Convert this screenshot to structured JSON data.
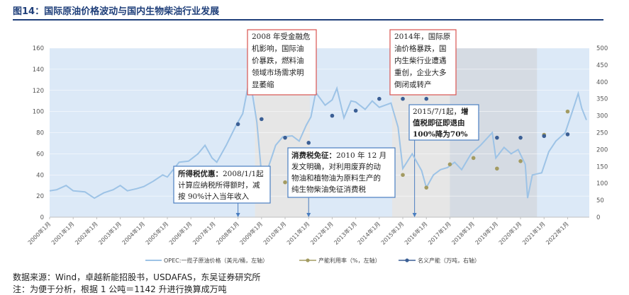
{
  "title": "图14：国际原油价格波动与国内生物柴油行业发展",
  "source": "数据来源：Wind，卓越新能招股书，USDAFAS，东吴证券研究所",
  "note": "注：为便于分析，根据 1 公吨＝1142 升进行换算成万吨",
  "colors": {
    "price_line": "#9dc3e6",
    "util_dot": "#a39b62",
    "cap_dot": "#3b5f95",
    "period_light": "#dce9f7",
    "period_gray": "#e6e6e6",
    "period_dark": "#d5dbe3",
    "box_red": "#d9534f",
    "box_blue": "#4a7ec0"
  },
  "chart_data": {
    "type": "line",
    "x_labels": [
      "2000年1月",
      "2001年1月",
      "2002年1月",
      "2003年1月",
      "2004年1月",
      "2005年1月",
      "2006年1月",
      "2007年1月",
      "2008年1月",
      "2009年1月",
      "2010年1月",
      "2011年1月",
      "2012年1月",
      "2013年1月",
      "2014年1月",
      "2015年1月",
      "2016年1月",
      "2017年1月",
      "2018年1月",
      "2019年1月",
      "2020年1月",
      "2021年1月",
      "2022年1月"
    ],
    "y_left": {
      "min": 0,
      "max": 160,
      "ticks": [
        0,
        20,
        40,
        60,
        80,
        100,
        120,
        140,
        160
      ]
    },
    "y_right": {
      "min": 0,
      "max": 500,
      "ticks": [
        0,
        50,
        100,
        150,
        200,
        250,
        300,
        350,
        400,
        450,
        500
      ]
    },
    "series": [
      {
        "name": "OPEC:一揽子原油价格（美元/桶，左轴）",
        "axis": "left",
        "kind": "line",
        "points": [
          [
            2000.0,
            25
          ],
          [
            2000.3,
            26
          ],
          [
            2000.7,
            30
          ],
          [
            2001.0,
            25
          ],
          [
            2001.5,
            24
          ],
          [
            2001.9,
            18
          ],
          [
            2002.3,
            23
          ],
          [
            2002.7,
            26
          ],
          [
            2003.0,
            30
          ],
          [
            2003.3,
            25
          ],
          [
            2003.7,
            27
          ],
          [
            2004.0,
            29
          ],
          [
            2004.4,
            34
          ],
          [
            2004.8,
            40
          ],
          [
            2005.0,
            38
          ],
          [
            2005.5,
            52
          ],
          [
            2005.9,
            53
          ],
          [
            2006.3,
            60
          ],
          [
            2006.6,
            68
          ],
          [
            2006.9,
            56
          ],
          [
            2007.1,
            52
          ],
          [
            2007.5,
            68
          ],
          [
            2007.9,
            86
          ],
          [
            2008.2,
            98
          ],
          [
            2008.5,
            132
          ],
          [
            2008.8,
            90
          ],
          [
            2009.0,
            41
          ],
          [
            2009.3,
            48
          ],
          [
            2009.6,
            68
          ],
          [
            2009.9,
            76
          ],
          [
            2010.3,
            77
          ],
          [
            2010.6,
            72
          ],
          [
            2010.9,
            87
          ],
          [
            2011.1,
            95
          ],
          [
            2011.3,
            118
          ],
          [
            2011.7,
            106
          ],
          [
            2012.0,
            111
          ],
          [
            2012.2,
            122
          ],
          [
            2012.5,
            94
          ],
          [
            2012.8,
            110
          ],
          [
            2013.0,
            109
          ],
          [
            2013.4,
            102
          ],
          [
            2013.7,
            110
          ],
          [
            2014.0,
            104
          ],
          [
            2014.5,
            108
          ],
          [
            2014.8,
            85
          ],
          [
            2015.0,
            46
          ],
          [
            2015.4,
            60
          ],
          [
            2015.8,
            44
          ],
          [
            2016.0,
            28
          ],
          [
            2016.3,
            40
          ],
          [
            2016.6,
            45
          ],
          [
            2016.9,
            47
          ],
          [
            2017.2,
            52
          ],
          [
            2017.5,
            45
          ],
          [
            2017.9,
            60
          ],
          [
            2018.3,
            68
          ],
          [
            2018.8,
            80
          ],
          [
            2018.95,
            56
          ],
          [
            2019.3,
            66
          ],
          [
            2019.6,
            60
          ],
          [
            2019.9,
            64
          ],
          [
            2020.2,
            50
          ],
          [
            2020.3,
            18
          ],
          [
            2020.5,
            40
          ],
          [
            2020.9,
            42
          ],
          [
            2021.2,
            62
          ],
          [
            2021.5,
            72
          ],
          [
            2021.9,
            80
          ],
          [
            2022.2,
            100
          ],
          [
            2022.45,
            117
          ],
          [
            2022.6,
            103
          ],
          [
            2022.8,
            92
          ]
        ]
      },
      {
        "name": "产能利用率（%，左轴）",
        "axis": "left",
        "kind": "dots",
        "points": [
          [
            2007,
            22
          ],
          [
            2008,
            17
          ],
          [
            2009,
            23
          ],
          [
            2010,
            33
          ],
          [
            2011,
            35
          ],
          [
            2012,
            34
          ],
          [
            2013,
            35
          ],
          [
            2014,
            38
          ],
          [
            2015,
            40
          ],
          [
            2016,
            28
          ],
          [
            2017,
            50
          ],
          [
            2018,
            56
          ],
          [
            2019,
            46
          ],
          [
            2020,
            53
          ],
          [
            2021,
            78
          ],
          [
            2022,
            100
          ]
        ]
      },
      {
        "name": "名义产能（万吨，右轴）",
        "axis": "right",
        "kind": "dots",
        "points": [
          [
            2008,
            275
          ],
          [
            2009,
            290
          ],
          [
            2010,
            235
          ],
          [
            2011,
            220
          ],
          [
            2012,
            300
          ],
          [
            2013,
            315
          ],
          [
            2014,
            350
          ],
          [
            2015,
            350
          ],
          [
            2016,
            350
          ],
          [
            2017,
            235
          ],
          [
            2018,
            235
          ],
          [
            2019,
            235
          ],
          [
            2020,
            235
          ],
          [
            2021,
            240
          ],
          [
            2022,
            245
          ]
        ]
      }
    ]
  },
  "periods": [
    {
      "start": 2008.72,
      "end": 2011.05,
      "tone": "gray"
    },
    {
      "start": 2014.55,
      "end": 2017.0,
      "tone": "gray"
    },
    {
      "start": 2017.0,
      "end": 2020.7,
      "tone": "dark"
    }
  ],
  "events": [
    {
      "date": 2008.0,
      "box": 0
    },
    {
      "date": 2011.0,
      "box": 1
    },
    {
      "date": 2015.5,
      "box": 2
    }
  ],
  "annotations": {
    "crisis_2008": [
      "2008 年受金融危",
      "机影响，国际油",
      "价暴跌，燃料油",
      "领域市场需求明",
      "显萎缩"
    ],
    "price_2014": [
      "2014年，国际原",
      "油价格暴跌，国",
      "内生柴行业遭遇",
      "重创，企业大多",
      "倒闭或转产"
    ],
    "tax_2008": {
      "bold": "所得税优惠：",
      "lines": [
        "2008/1/1起",
        "计算应纳税所得额时，减",
        "按 90%计入当年收入"
      ]
    },
    "tax_2011": {
      "bold": "消费税免征：",
      "lines": [
        "2010 年 12 月",
        "发文明确，对利用废弃的动",
        "物油和植物油为原料生产的",
        "纯生物柴油免征消费税"
      ]
    },
    "vat_2015": {
      "lines": [
        "2015/7/1起，",
        "值税即征即退由",
        "100%降为70%"
      ],
      "bold_suffix": "增"
    }
  }
}
